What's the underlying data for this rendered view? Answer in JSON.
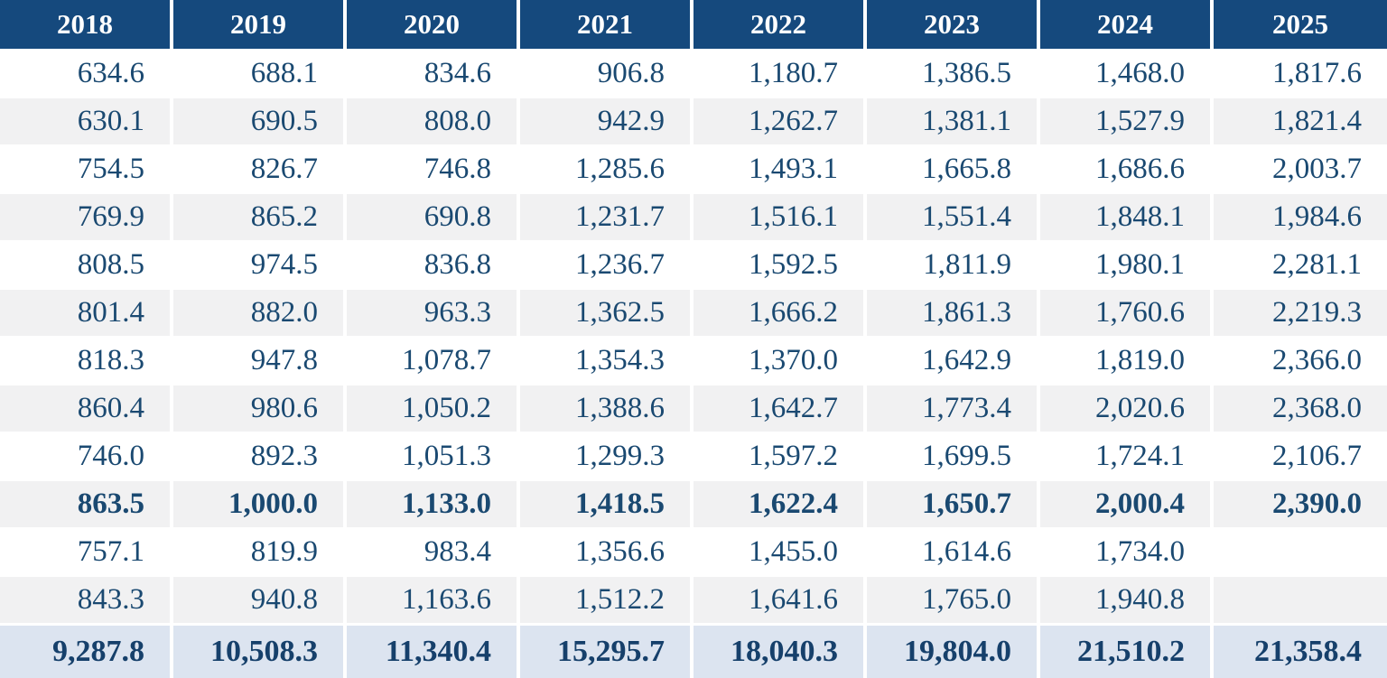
{
  "chart_data": {
    "type": "table",
    "columns": [
      "2018",
      "2019",
      "2020",
      "2021",
      "2022",
      "2023",
      "2024",
      "2025"
    ],
    "rows": [
      [
        "634.6",
        "688.1",
        "834.6",
        "906.8",
        "1,180.7",
        "1,386.5",
        "1,468.0",
        "1,817.6"
      ],
      [
        "630.1",
        "690.5",
        "808.0",
        "942.9",
        "1,262.7",
        "1,381.1",
        "1,527.9",
        "1,821.4"
      ],
      [
        "754.5",
        "826.7",
        "746.8",
        "1,285.6",
        "1,493.1",
        "1,665.8",
        "1,686.6",
        "2,003.7"
      ],
      [
        "769.9",
        "865.2",
        "690.8",
        "1,231.7",
        "1,516.1",
        "1,551.4",
        "1,848.1",
        "1,984.6"
      ],
      [
        "808.5",
        "974.5",
        "836.8",
        "1,236.7",
        "1,592.5",
        "1,811.9",
        "1,980.1",
        "2,281.1"
      ],
      [
        "801.4",
        "882.0",
        "963.3",
        "1,362.5",
        "1,666.2",
        "1,861.3",
        "1,760.6",
        "2,219.3"
      ],
      [
        "818.3",
        "947.8",
        "1,078.7",
        "1,354.3",
        "1,370.0",
        "1,642.9",
        "1,819.0",
        "2,366.0"
      ],
      [
        "860.4",
        "980.6",
        "1,050.2",
        "1,388.6",
        "1,642.7",
        "1,773.4",
        "2,020.6",
        "2,368.0"
      ],
      [
        "746.0",
        "892.3",
        "1,051.3",
        "1,299.3",
        "1,597.2",
        "1,699.5",
        "1,724.1",
        "2,106.7"
      ],
      [
        "863.5",
        "1,000.0",
        "1,133.0",
        "1,418.5",
        "1,622.4",
        "1,650.7",
        "2,000.4",
        "2,390.0"
      ],
      [
        "757.1",
        "819.9",
        "983.4",
        "1,356.6",
        "1,455.0",
        "1,614.6",
        "1,734.0",
        ""
      ],
      [
        "843.3",
        "940.8",
        "1,163.6",
        "1,512.2",
        "1,641.6",
        "1,765.0",
        "1,940.8",
        ""
      ]
    ],
    "totals": [
      "9,287.8",
      "10,508.3",
      "11,340.4",
      "15,295.7",
      "18,040.3",
      "19,804.0",
      "21,510.2",
      "21,358.4"
    ],
    "bold_row_index": 9,
    "layout": {
      "stripe_pattern": "alternating-rows-starting-white",
      "grid": "white-separators",
      "legend_position": "none"
    }
  },
  "colors": {
    "header_bg": "#15497D",
    "header_text": "#FFFFFF",
    "cell_text": "#1A4971",
    "stripe_bg": "#F1F1F2",
    "total_bg": "#DCE4F0",
    "total_text": "#16406B",
    "separator": "#FFFFFF"
  }
}
